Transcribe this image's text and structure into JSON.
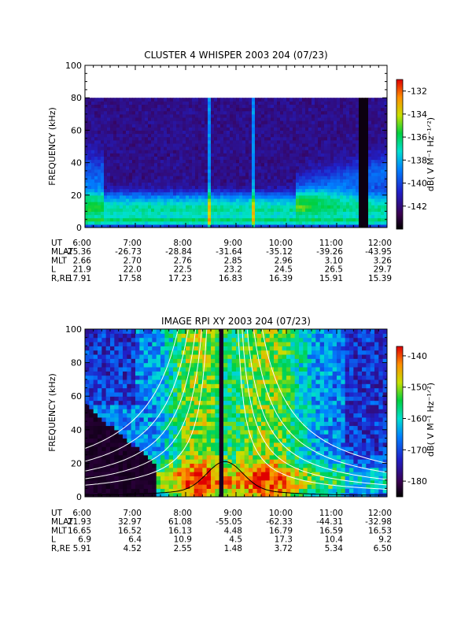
{
  "chart_data": [
    {
      "type": "heatmap",
      "title": "CLUSTER 4 WHISPER 2003 204 (07/23)",
      "ylabel": "FREQUENCY (kHz)",
      "ylim": [
        0,
        100
      ],
      "yticks": [
        "0",
        "20",
        "40",
        "60",
        "80",
        "100"
      ],
      "xlim": [
        "6:00",
        "12:00"
      ],
      "xticks": [
        "6:00",
        "7:00",
        "8:00",
        "9:00",
        "10:00",
        "11:00",
        "12:00"
      ],
      "data_max_frequency": 80,
      "colorbar": {
        "label": "dB( V M⁻¹ Hz⁻¹ᐟ²)",
        "range": [
          -144,
          -131
        ],
        "ticks": [
          "-132",
          "-134",
          "-136",
          "-138",
          "-140",
          "-142"
        ]
      },
      "ephemeris": {
        "labels": [
          "UT",
          "MLAT",
          "MLT",
          "L",
          "R,RE"
        ],
        "rows": [
          [
            "6:00",
            "7:00",
            "8:00",
            "9:00",
            "10:00",
            "11:00",
            "12:00"
          ],
          [
            "-25.36",
            "-26.73",
            "-28.84",
            "-31.64",
            "-35.12",
            "-39.26",
            "-43.95"
          ],
          [
            "2.66",
            "2.70",
            "2.76",
            "2.85",
            "2.96",
            "3.10",
            "3.26"
          ],
          [
            "21.9",
            "22.0",
            "22.5",
            "23.2",
            "24.5",
            "26.5",
            "29.7"
          ],
          [
            "17.91",
            "17.58",
            "17.23",
            "16.83",
            "16.39",
            "15.91",
            "15.39"
          ]
        ]
      }
    },
    {
      "type": "heatmap",
      "title": "IMAGE RPI XY 2003 204 (07/23)",
      "ylabel": "FREQUENCY (kHz)",
      "ylim": [
        0,
        100
      ],
      "yticks": [
        "0",
        "20",
        "40",
        "60",
        "80",
        "100"
      ],
      "xlim": [
        "6:00",
        "12:00"
      ],
      "xticks": [
        "6:00",
        "7:00",
        "8:00",
        "9:00",
        "10:00",
        "11:00",
        "12:00"
      ],
      "colorbar": {
        "label": "dB( V M⁻¹ Hz⁻¹ᐟ²)",
        "range": [
          -185,
          -137
        ],
        "ticks": [
          "-140",
          "-150",
          "-160",
          "-170",
          "-180"
        ]
      },
      "ephemeris": {
        "labels": [
          "UT",
          "MLAT",
          "MLT",
          "L",
          "R,RE"
        ],
        "rows": [
          [
            "6:00",
            "7:00",
            "8:00",
            "9:00",
            "10:00",
            "11:00",
            "12:00"
          ],
          [
            "21.93",
            "32.97",
            "61.08",
            "-55.05",
            "-62.33",
            "-44.31",
            "-32.98"
          ],
          [
            "16.65",
            "16.52",
            "16.13",
            "4.48",
            "16.79",
            "16.59",
            "16.53"
          ],
          [
            "6.9",
            "6.4",
            "10.9",
            "4.5",
            "17.3",
            "10.4",
            "9.2"
          ],
          [
            "5.91",
            "4.52",
            "2.55",
            "1.48",
            "3.72",
            "5.34",
            "6.50"
          ]
        ]
      }
    }
  ]
}
